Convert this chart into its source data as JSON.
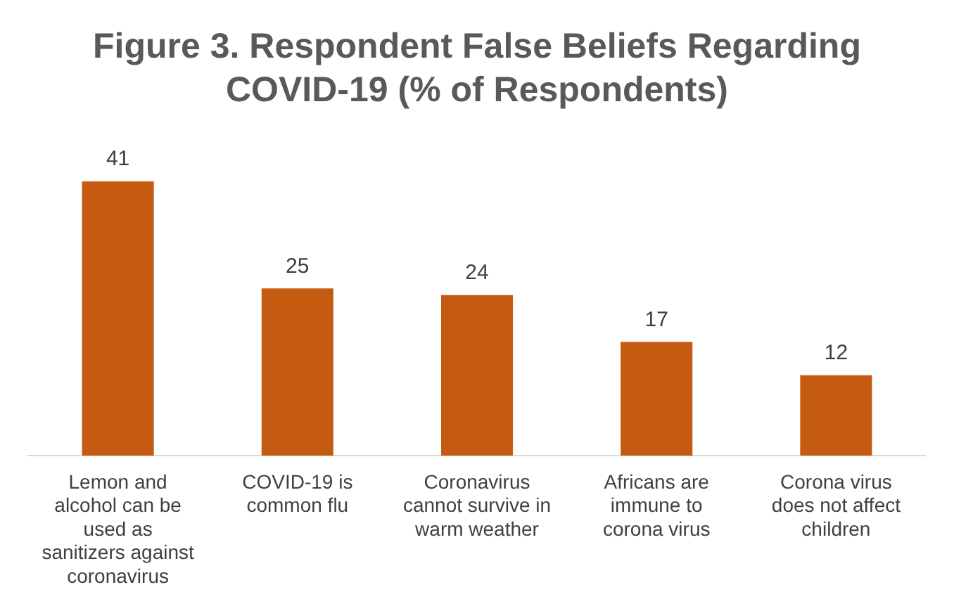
{
  "chart_data": {
    "type": "bar",
    "title": "Figure 3. Respondent False Beliefs Regarding COVID-19 (% of Respondents)",
    "categories": [
      "Lemon and alcohol can be used as sanitizers against coronavirus",
      "COVID-19 is common flu",
      "Coronavirus cannot survive in warm weather",
      "Africans are immune to corona virus",
      "Corona virus does not affect children"
    ],
    "values": [
      41,
      25,
      24,
      17,
      12
    ],
    "color": "#c55a11",
    "data_labels": true
  }
}
